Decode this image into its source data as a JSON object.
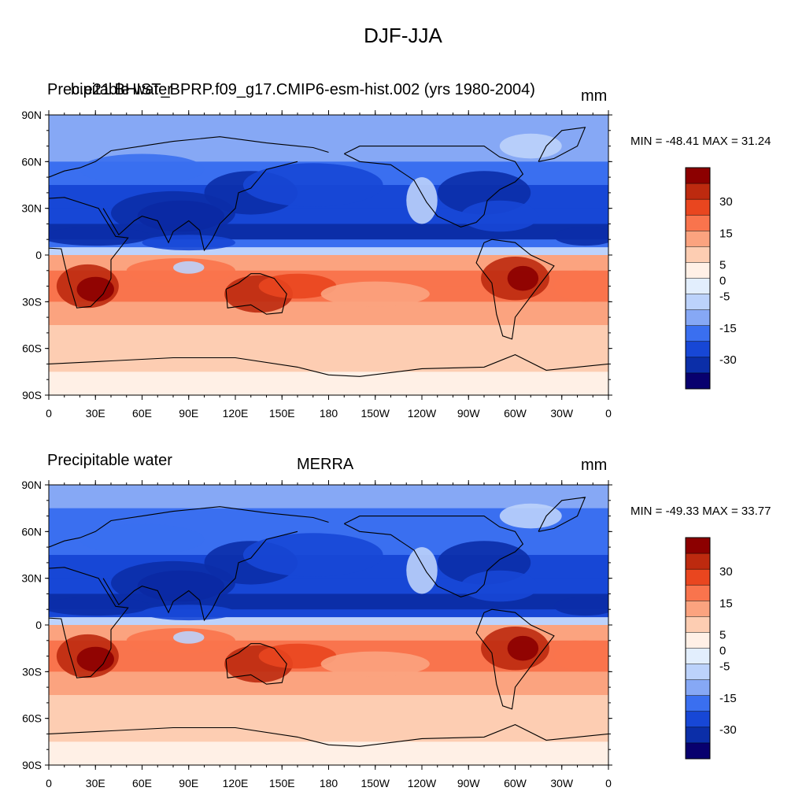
{
  "figure": {
    "title": "DJF-JJA"
  },
  "colors": {
    "levels": [
      "#08006e",
      "#0b2ea8",
      "#1747d6",
      "#3a6ff0",
      "#86a8f5",
      "#bcd2fb",
      "#e2eefd",
      "#fff0e6",
      "#fdcdb2",
      "#fba37f",
      "#f9744d",
      "#e9461f",
      "#bd2a0f",
      "#8c0000"
    ],
    "land_outline": "#000000"
  },
  "panels": [
    {
      "left_title": "Precipitable water",
      "center_title": "b.e21.BHIST_BPRP.f09_g17.CMIP6-esm-hist.002 (yrs 1980-2004)",
      "units": "mm",
      "minmax": "MIN = -48.41 MAX =  31.24"
    },
    {
      "left_title": "Precipitable water",
      "center_title": "MERRA",
      "units": "mm",
      "minmax": "MIN = -49.33 MAX =  33.77"
    }
  ],
  "axes": {
    "lat_labels": [
      "90N",
      "60N",
      "30N",
      "0",
      "30S",
      "60S",
      "90S"
    ],
    "lon_labels": [
      "0",
      "30E",
      "60E",
      "90E",
      "120E",
      "150E",
      "180",
      "150W",
      "120W",
      "90W",
      "60W",
      "30W",
      "0"
    ]
  },
  "colorbar": {
    "labels": [
      "30",
      "15",
      "5",
      "0",
      "-5",
      "-15",
      "-30"
    ]
  },
  "chart_data": [
    {
      "type": "heatmap",
      "title": "b.e21.BHIST_BPRP.f09_g17.CMIP6-esm-hist.002 (yrs 1980-2004)",
      "variable": "Precipitable water",
      "units": "mm",
      "season": "DJF-JJA",
      "min": -48.41,
      "max": 31.24,
      "xlim": [
        0,
        360
      ],
      "ylim": [
        -90,
        90
      ],
      "contour_levels": [
        -40,
        -30,
        -20,
        -15,
        -10,
        -5,
        -2,
        0,
        2,
        5,
        10,
        15,
        20,
        30,
        40
      ],
      "zonal_profile": {
        "lat": [
          90,
          75,
          60,
          45,
          30,
          20,
          10,
          5,
          0,
          -10,
          -20,
          -30,
          -45,
          -60,
          -75,
          -90
        ],
        "value": [
          -6,
          -8,
          -12,
          -15,
          -17,
          -20,
          -22,
          -8,
          2,
          11,
          12,
          10,
          5,
          3,
          1,
          0
        ]
      }
    },
    {
      "type": "heatmap",
      "title": "MERRA",
      "variable": "Precipitable water",
      "units": "mm",
      "season": "DJF-JJA",
      "min": -49.33,
      "max": 33.77,
      "xlim": [
        0,
        360
      ],
      "ylim": [
        -90,
        90
      ],
      "contour_levels": [
        -40,
        -30,
        -20,
        -15,
        -10,
        -5,
        -2,
        0,
        2,
        5,
        10,
        15,
        20,
        30,
        40
      ],
      "zonal_profile": {
        "lat": [
          90,
          75,
          60,
          45,
          30,
          20,
          10,
          5,
          0,
          -10,
          -20,
          -30,
          -45,
          -60,
          -75,
          -90
        ],
        "value": [
          -6,
          -9,
          -13,
          -16,
          -18,
          -21,
          -23,
          -9,
          3,
          12,
          13,
          11,
          6,
          3,
          1,
          0
        ]
      }
    }
  ]
}
